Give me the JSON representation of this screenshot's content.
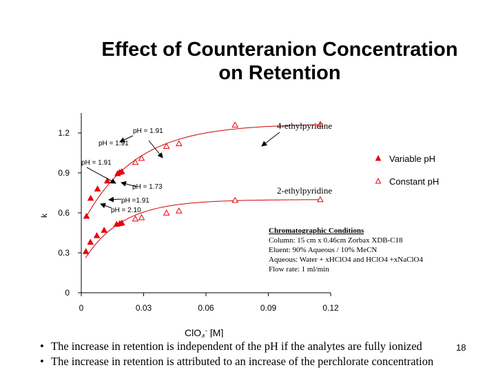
{
  "title_line1": "Effect of Counteranion Concentration",
  "title_line2": "on Retention",
  "page_number": "18",
  "bullets": [
    "The increase in retention is independent of the pH if the analytes are fully ionized",
    "The increase in retention is attributed to an increase of the perchlorate concentration"
  ],
  "bullet_symbol": "•",
  "conditions": {
    "heading": "Chromatographic Conditions",
    "lines": [
      "Column:  15 cm x 0.46cm Zorbax XDB-C18",
      "Eluent:   90% Aqueous / 10% MeCN",
      "Aqueous: Water + xHClO4 and  HClO4 +xNaClO4",
      "Flow rate: 1 ml/min"
    ]
  },
  "chart_data": {
    "type": "scatter",
    "xlabel": "ClO4- [M]",
    "ylabel": "k",
    "xlim": [
      0,
      0.12
    ],
    "ylim": [
      0,
      1.35
    ],
    "x_ticks": [
      "0",
      "0.03",
      "0.06",
      "0.09",
      "0.12"
    ],
    "x_tick_values": [
      0,
      0.03,
      0.06,
      0.09,
      0.12
    ],
    "y_ticks": [
      "0",
      "0.3",
      "0.6",
      "0.9",
      "1.2"
    ],
    "y_tick_values": [
      0,
      0.3,
      0.6,
      0.9,
      1.2
    ],
    "legend_position": "right",
    "series": [
      {
        "name": "Variable pH",
        "marker": "filled-triangle",
        "color": "#e8000e",
        "points": [
          {
            "x": 0.0022,
            "y": 0.31
          },
          {
            "x": 0.0044,
            "y": 0.38
          },
          {
            "x": 0.0075,
            "y": 0.43
          },
          {
            "x": 0.011,
            "y": 0.47
          },
          {
            "x": 0.017,
            "y": 0.515
          },
          {
            "x": 0.0185,
            "y": 0.52
          },
          {
            "x": 0.0195,
            "y": 0.525
          },
          {
            "x": 0.0025,
            "y": 0.575
          },
          {
            "x": 0.0045,
            "y": 0.71
          },
          {
            "x": 0.0078,
            "y": 0.78
          },
          {
            "x": 0.0125,
            "y": 0.84
          },
          {
            "x": 0.0175,
            "y": 0.895
          },
          {
            "x": 0.0185,
            "y": 0.905
          },
          {
            "x": 0.0195,
            "y": 0.91
          }
        ]
      },
      {
        "name": "Constant pH",
        "marker": "open-triangle",
        "color": "#e8000e",
        "points": [
          {
            "x": 0.026,
            "y": 0.555
          },
          {
            "x": 0.029,
            "y": 0.565
          },
          {
            "x": 0.041,
            "y": 0.6
          },
          {
            "x": 0.047,
            "y": 0.615
          },
          {
            "x": 0.074,
            "y": 0.695
          },
          {
            "x": 0.115,
            "y": 0.7
          },
          {
            "x": 0.026,
            "y": 0.98
          },
          {
            "x": 0.029,
            "y": 1.01
          },
          {
            "x": 0.041,
            "y": 1.1
          },
          {
            "x": 0.047,
            "y": 1.12
          },
          {
            "x": 0.074,
            "y": 1.26
          },
          {
            "x": 0.115,
            "y": 1.265
          }
        ]
      }
    ],
    "curves": [
      {
        "a": 0.7,
        "k": 55,
        "y0": 0.21
      },
      {
        "a": 1.27,
        "k": 40,
        "y0": 0.5
      }
    ],
    "curve_color": "#cc0000",
    "annotations": [
      {
        "text": "4-ethylpyridine",
        "font": "serif"
      },
      {
        "text": "2-ethylpyridine",
        "font": "serif"
      },
      {
        "text": "pH = 1.91",
        "font": "sans"
      },
      {
        "text": "pH = 1.91",
        "font": "sans"
      },
      {
        "text": "pH = 1.91",
        "font": "sans"
      },
      {
        "text": "pH = 1.73",
        "font": "sans"
      },
      {
        "text": "pH =1.91",
        "font": "sans"
      },
      {
        "text": "pH = 2.10",
        "font": "sans"
      }
    ]
  }
}
